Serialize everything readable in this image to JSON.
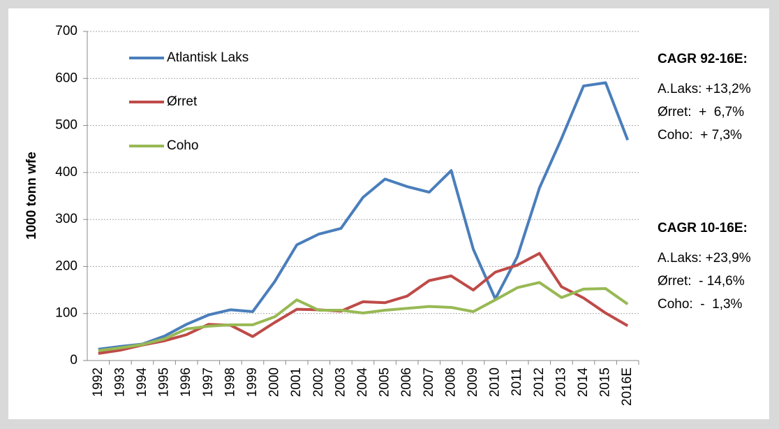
{
  "chart_data": {
    "type": "line",
    "y_label": "1000 tonn  wfe",
    "categories": [
      "1992",
      "1993",
      "1994",
      "1995",
      "1996",
      "1997",
      "1998",
      "1999",
      "2000",
      "2001",
      "2002",
      "2003",
      "2004",
      "2005",
      "2006",
      "2007",
      "2008",
      "2009",
      "2010",
      "2011",
      "2012",
      "2013",
      "2014",
      "2015",
      "2016E"
    ],
    "series": [
      {
        "name": "Atlantisk Laks",
        "color": "#4a7ebb",
        "values": [
          24,
          30,
          35,
          52,
          77,
          97,
          108,
          104,
          168,
          246,
          269,
          281,
          347,
          386,
          370,
          358,
          404,
          237,
          131,
          221,
          367,
          472,
          584,
          591,
          469
        ]
      },
      {
        "name": "Ørret",
        "color": "#be4b48",
        "values": [
          15,
          22,
          33,
          42,
          55,
          77,
          75,
          51,
          81,
          109,
          108,
          105,
          125,
          123,
          137,
          170,
          180,
          150,
          188,
          203,
          228,
          157,
          133,
          101,
          74
        ]
      },
      {
        "name": "Coho",
        "color": "#98b954",
        "values": [
          21,
          27,
          34,
          46,
          67,
          73,
          76,
          76,
          93,
          129,
          107,
          107,
          101,
          107,
          111,
          115,
          113,
          104,
          129,
          155,
          166,
          134,
          152,
          153,
          120
        ]
      }
    ],
    "ylim": [
      0,
      700
    ],
    "yticks": [
      0,
      100,
      200,
      300,
      400,
      500,
      600,
      700
    ],
    "grid": true,
    "annotations": [
      {
        "title": "CAGR 92-16E:",
        "lines": [
          "A.Laks: +13,2%",
          "Ørret:  +  6,7%",
          "Coho:  + 7,3%"
        ]
      },
      {
        "title": "CAGR 10-16E:",
        "lines": [
          "A.Laks: +23,9%",
          "Ørret:  - 14,6%",
          "Coho:  -  1,3%"
        ]
      }
    ]
  }
}
